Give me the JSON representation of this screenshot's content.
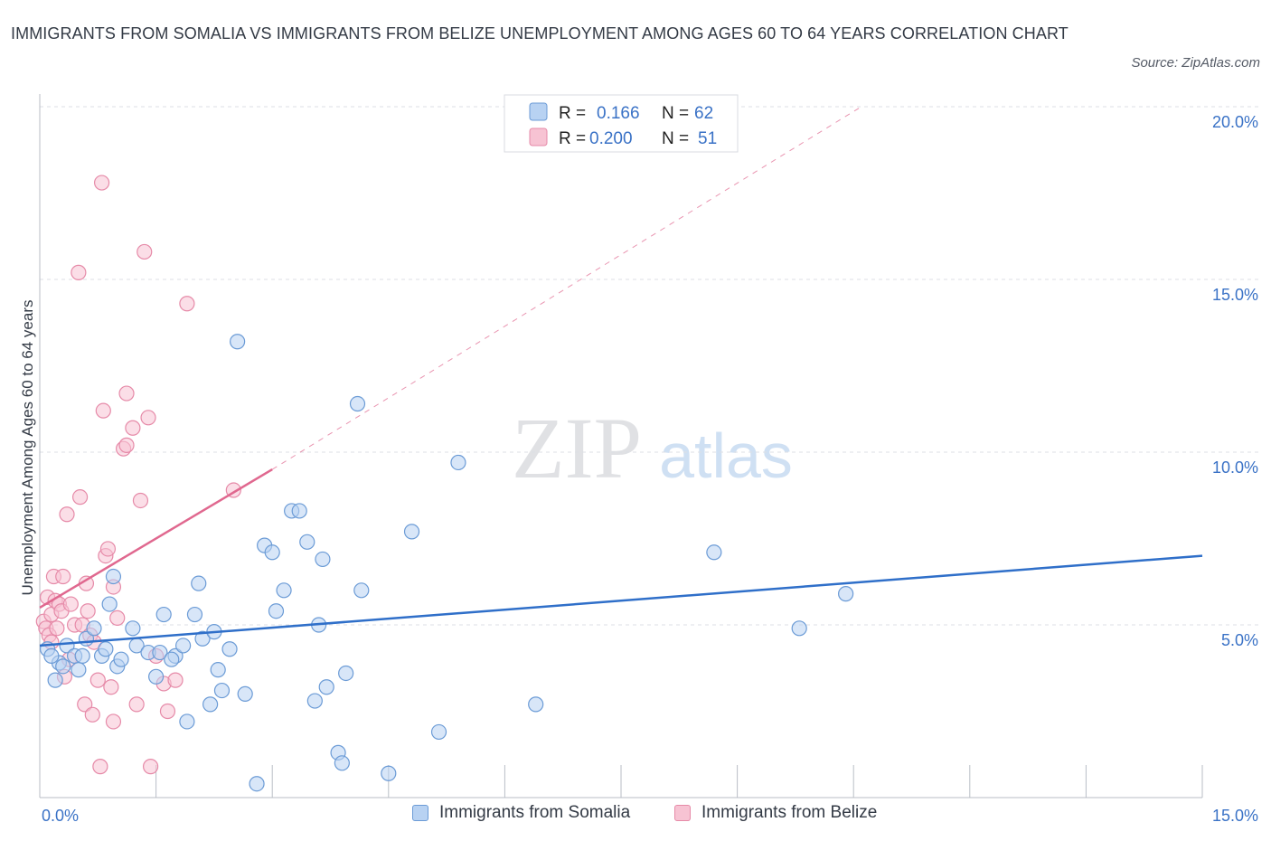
{
  "title": "IMMIGRANTS FROM SOMALIA VS IMMIGRANTS FROM BELIZE UNEMPLOYMENT AMONG AGES 60 TO 64 YEARS CORRELATION CHART",
  "source": "Source: ZipAtlas.com",
  "watermark": {
    "zip": "ZIP",
    "atlas": "atlas"
  },
  "colors": {
    "somalia_fill": "#b8d2f2",
    "somalia_stroke": "#6b9bd6",
    "somalia_line": "#2f6fc9",
    "belize_fill": "#f7c3d3",
    "belize_stroke": "#e68aa8",
    "belize_line": "#e0688f",
    "axis_label": "#3a72c6",
    "grid": "#dcdfe4"
  },
  "legend": {
    "rows": [
      {
        "r_label": "R =",
        "r_value": "0.166",
        "n_label": "N =",
        "n_value": "62"
      },
      {
        "r_label": "R =",
        "r_value": "0.200",
        "n_label": "N =",
        "n_value": "51"
      }
    ]
  },
  "bottom_legend": {
    "somalia": "Immigrants from Somalia",
    "belize": "Immigrants from Belize"
  },
  "chart_data": {
    "type": "scatter",
    "title": "IMMIGRANTS FROM SOMALIA VS IMMIGRANTS FROM BELIZE UNEMPLOYMENT AMONG AGES 60 TO 64 YEARS CORRELATION CHART",
    "xlabel": "",
    "ylabel": "Unemployment Among Ages 60 to 64 years",
    "xlim": [
      0,
      15
    ],
    "ylim": [
      0,
      20
    ],
    "x_tick_labels": [
      "0.0%",
      "15.0%"
    ],
    "y_ticks": [
      5,
      10,
      15,
      20
    ],
    "y_tick_labels": [
      "5.0%",
      "10.0%",
      "15.0%",
      "20.0%"
    ],
    "series": [
      {
        "name": "Immigrants from Somalia",
        "r": 0.166,
        "n": 62,
        "trend": {
          "x": [
            0,
            15
          ],
          "y": [
            4.4,
            7.0
          ],
          "dashed_extension": false
        },
        "points": [
          [
            0.1,
            4.3
          ],
          [
            0.2,
            3.4
          ],
          [
            0.25,
            3.9
          ],
          [
            0.35,
            4.4
          ],
          [
            0.45,
            4.1
          ],
          [
            0.5,
            3.7
          ],
          [
            0.6,
            4.6
          ],
          [
            0.7,
            4.9
          ],
          [
            0.8,
            4.1
          ],
          [
            0.9,
            5.6
          ],
          [
            0.95,
            6.4
          ],
          [
            1.0,
            3.8
          ],
          [
            1.2,
            4.9
          ],
          [
            1.25,
            4.4
          ],
          [
            1.4,
            4.2
          ],
          [
            1.5,
            3.5
          ],
          [
            1.6,
            5.3
          ],
          [
            1.75,
            4.1
          ],
          [
            1.85,
            4.4
          ],
          [
            1.9,
            2.2
          ],
          [
            2.0,
            5.3
          ],
          [
            2.05,
            6.2
          ],
          [
            2.1,
            4.6
          ],
          [
            2.2,
            2.7
          ],
          [
            2.25,
            4.8
          ],
          [
            2.3,
            3.7
          ],
          [
            2.35,
            3.1
          ],
          [
            2.45,
            4.3
          ],
          [
            2.55,
            13.2
          ],
          [
            2.65,
            3.0
          ],
          [
            2.8,
            0.4
          ],
          [
            2.9,
            7.3
          ],
          [
            3.0,
            7.1
          ],
          [
            3.05,
            5.4
          ],
          [
            3.15,
            6.0
          ],
          [
            3.25,
            8.3
          ],
          [
            3.35,
            8.3
          ],
          [
            3.45,
            7.4
          ],
          [
            3.55,
            2.8
          ],
          [
            3.6,
            5.0
          ],
          [
            3.7,
            3.2
          ],
          [
            3.65,
            6.9
          ],
          [
            3.85,
            1.3
          ],
          [
            3.9,
            1.0
          ],
          [
            3.95,
            3.6
          ],
          [
            4.1,
            11.4
          ],
          [
            4.15,
            6.0
          ],
          [
            4.5,
            0.7
          ],
          [
            4.8,
            7.7
          ],
          [
            5.15,
            1.9
          ],
          [
            5.4,
            9.7
          ],
          [
            6.4,
            2.7
          ],
          [
            8.7,
            7.1
          ],
          [
            9.8,
            4.9
          ],
          [
            10.4,
            5.9
          ],
          [
            1.55,
            4.2
          ],
          [
            1.7,
            4.0
          ],
          [
            0.55,
            4.1
          ],
          [
            0.85,
            4.3
          ],
          [
            0.3,
            3.8
          ],
          [
            1.05,
            4.0
          ],
          [
            0.15,
            4.1
          ]
        ]
      },
      {
        "name": "Immigrants from Belize",
        "r": 0.2,
        "n": 51,
        "trend": {
          "x": [
            0,
            3.0
          ],
          "y": [
            5.5,
            9.5
          ],
          "dashed_extension": {
            "x": [
              3.0,
              10.6
            ],
            "y": [
              9.5,
              20.0
            ]
          }
        },
        "points": [
          [
            0.05,
            5.1
          ],
          [
            0.08,
            4.9
          ],
          [
            0.1,
            5.8
          ],
          [
            0.12,
            4.7
          ],
          [
            0.15,
            5.3
          ],
          [
            0.18,
            6.4
          ],
          [
            0.2,
            5.7
          ],
          [
            0.22,
            4.9
          ],
          [
            0.25,
            5.6
          ],
          [
            0.28,
            5.4
          ],
          [
            0.3,
            6.4
          ],
          [
            0.32,
            3.5
          ],
          [
            0.35,
            8.2
          ],
          [
            0.38,
            4.0
          ],
          [
            0.4,
            5.6
          ],
          [
            0.45,
            5.0
          ],
          [
            0.5,
            15.2
          ],
          [
            0.52,
            8.7
          ],
          [
            0.55,
            5.0
          ],
          [
            0.58,
            2.7
          ],
          [
            0.6,
            6.2
          ],
          [
            0.62,
            5.4
          ],
          [
            0.65,
            4.7
          ],
          [
            0.68,
            2.4
          ],
          [
            0.7,
            4.5
          ],
          [
            0.75,
            3.4
          ],
          [
            0.78,
            0.9
          ],
          [
            0.8,
            17.8
          ],
          [
            0.82,
            11.2
          ],
          [
            0.85,
            7.0
          ],
          [
            0.88,
            7.2
          ],
          [
            0.92,
            3.2
          ],
          [
            0.95,
            6.1
          ],
          [
            0.95,
            2.2
          ],
          [
            1.0,
            5.2
          ],
          [
            1.08,
            10.1
          ],
          [
            1.12,
            10.2
          ],
          [
            1.12,
            11.7
          ],
          [
            1.2,
            10.7
          ],
          [
            1.25,
            2.7
          ],
          [
            1.3,
            8.6
          ],
          [
            1.35,
            15.8
          ],
          [
            1.4,
            11.0
          ],
          [
            1.43,
            0.9
          ],
          [
            1.5,
            4.1
          ],
          [
            1.6,
            3.3
          ],
          [
            1.65,
            2.5
          ],
          [
            1.75,
            3.4
          ],
          [
            1.9,
            14.3
          ],
          [
            2.5,
            8.9
          ],
          [
            0.15,
            4.5
          ]
        ]
      }
    ]
  }
}
